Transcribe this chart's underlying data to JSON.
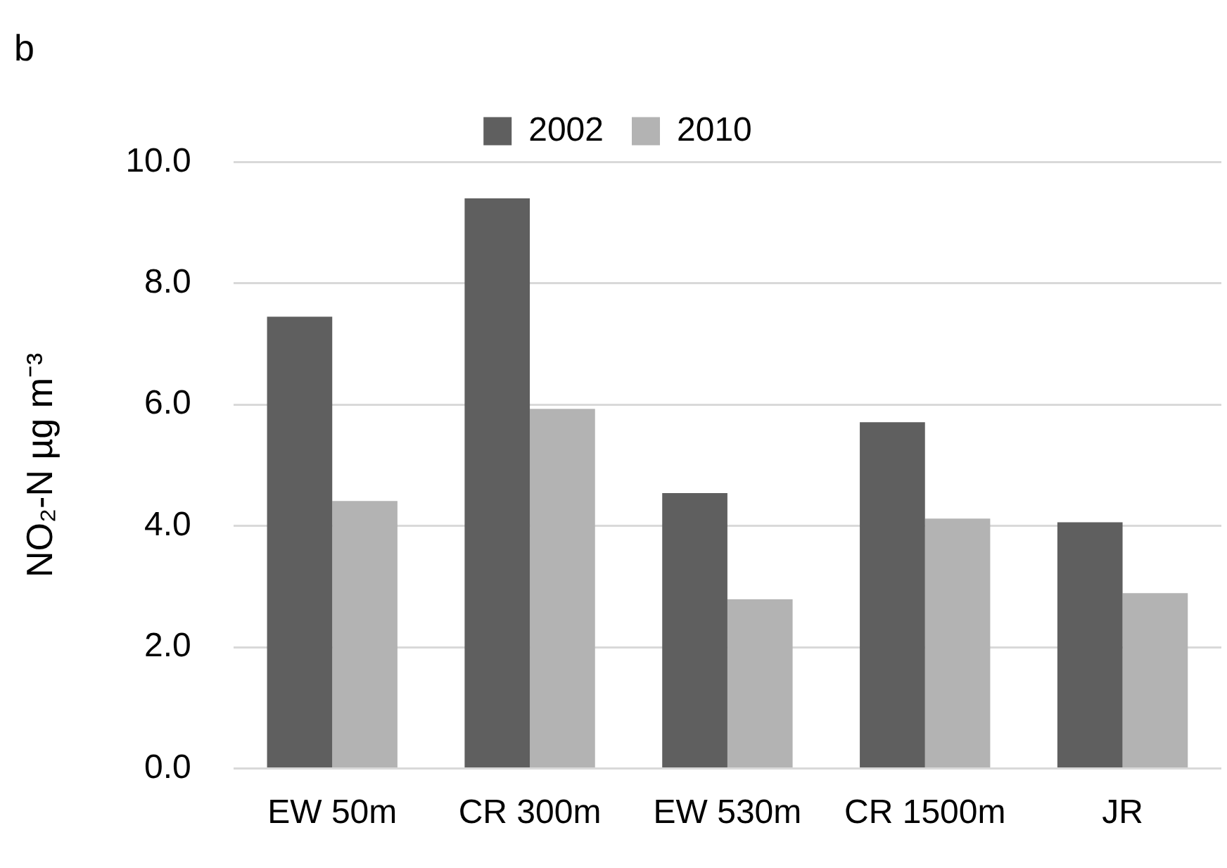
{
  "chart_data": {
    "type": "bar",
    "title": "b",
    "ylabel": "NO₂-N µg m⁻³",
    "categories": [
      "EW 50m",
      "CR 300m",
      "EW 530m",
      "CR 1500m",
      "JR"
    ],
    "series": [
      {
        "name": "2002",
        "color": "#5f5f5f",
        "values": [
          7.45,
          9.4,
          4.54,
          5.71,
          4.06
        ]
      },
      {
        "name": "2010",
        "color": "#b3b3b3",
        "values": [
          4.41,
          5.93,
          2.79,
          4.12,
          2.89
        ]
      }
    ],
    "ylim": [
      0,
      10
    ],
    "yticks": [
      {
        "value": 0,
        "label": "0.0"
      },
      {
        "value": 2,
        "label": "2.0"
      },
      {
        "value": 4,
        "label": "4.0"
      },
      {
        "value": 6,
        "label": "6.0"
      },
      {
        "value": 8,
        "label": "8.0"
      },
      {
        "value": 10,
        "label": "10.0"
      }
    ],
    "grid": "y",
    "legend": "top"
  }
}
